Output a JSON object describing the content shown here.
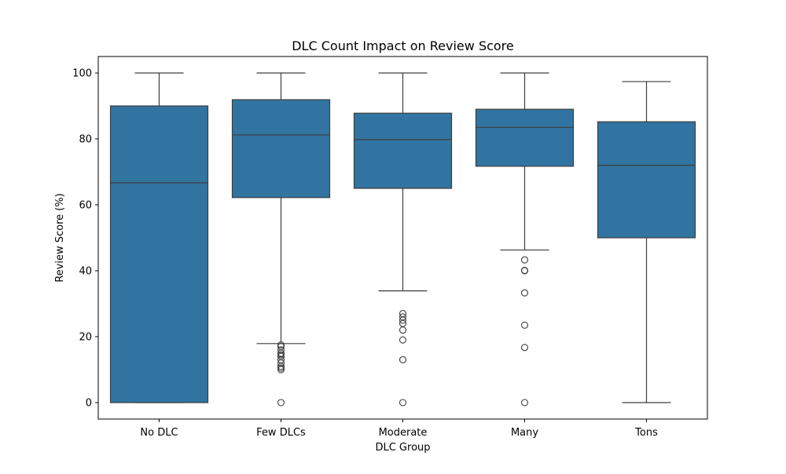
{
  "chart_data": {
    "type": "box",
    "title": "DLC Count Impact on Review Score",
    "xlabel": "DLC Group",
    "ylabel": "Review Score (%)",
    "ylim": [
      -5,
      105
    ],
    "yticks": [
      0,
      20,
      40,
      60,
      80,
      100
    ],
    "grid": false,
    "box_color": "#3274a1",
    "line_color": "#3d3d3d",
    "categories": [
      "No DLC",
      "Few DLCs",
      "Moderate",
      "Many",
      "Tons"
    ],
    "boxes": [
      {
        "category": "No DLC",
        "whisker_low": 0,
        "q1": 0,
        "median": 66.7,
        "q3": 90,
        "whisker_high": 100,
        "outliers": []
      },
      {
        "category": "Few DLCs",
        "whisker_low": 17.9,
        "q1": 62.2,
        "median": 81.2,
        "q3": 91.9,
        "whisker_high": 100,
        "outliers": [
          0,
          10,
          10.5,
          11,
          12,
          13,
          14,
          14.5,
          15,
          16,
          17,
          17.5
        ]
      },
      {
        "category": "Moderate",
        "whisker_low": 33.9,
        "q1": 65,
        "median": 79.8,
        "q3": 87.8,
        "whisker_high": 100,
        "outliers": [
          0,
          13,
          19,
          22,
          24,
          25,
          26,
          27
        ]
      },
      {
        "category": "Many",
        "whisker_low": 46.3,
        "q1": 71.7,
        "median": 83.5,
        "q3": 89,
        "whisker_high": 100,
        "outliers": [
          0,
          16.7,
          23.5,
          33.3,
          40,
          40.1,
          43.3
        ]
      },
      {
        "category": "Tons",
        "whisker_low": 0,
        "q1": 50,
        "median": 72,
        "q3": 85.2,
        "whisker_high": 97.4,
        "outliers": []
      }
    ]
  }
}
